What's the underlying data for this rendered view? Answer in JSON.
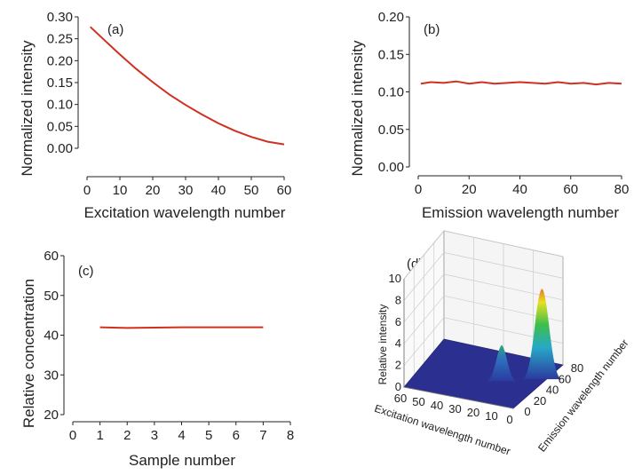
{
  "chart_data": [
    {
      "type": "line",
      "panel_label": "(a)",
      "xlabel": "Excitation wavelength number",
      "ylabel": "Normalized intensity",
      "xlim": [
        0,
        60
      ],
      "ylim": [
        0.0,
        0.3
      ],
      "x_ticks": [
        "0",
        "10",
        "20",
        "30",
        "40",
        "50",
        "60"
      ],
      "y_ticks": [
        "0.00",
        "0.05",
        "0.10",
        "0.15",
        "0.20",
        "0.25",
        "0.30"
      ],
      "grid": false,
      "color": "#d03020",
      "x": [
        1,
        5,
        10,
        15,
        20,
        25,
        30,
        35,
        40,
        45,
        50,
        55,
        60
      ],
      "y": [
        0.277,
        0.249,
        0.214,
        0.181,
        0.151,
        0.123,
        0.099,
        0.077,
        0.057,
        0.04,
        0.026,
        0.015,
        0.009
      ]
    },
    {
      "type": "line",
      "panel_label": "(b)",
      "xlabel": "Emission wavelength number",
      "ylabel": "Normalized intensity",
      "xlim": [
        0,
        80
      ],
      "ylim": [
        0.0,
        0.2
      ],
      "x_ticks": [
        "0",
        "20",
        "40",
        "60",
        "80"
      ],
      "y_ticks": [
        "0.00",
        "0.05",
        "0.10",
        "0.15",
        "0.20"
      ],
      "grid": false,
      "color": "#d03020",
      "x": [
        1,
        5,
        10,
        15,
        20,
        25,
        30,
        35,
        40,
        45,
        50,
        55,
        60,
        65,
        70,
        75,
        80
      ],
      "y": [
        0.111,
        0.113,
        0.112,
        0.114,
        0.111,
        0.113,
        0.111,
        0.112,
        0.113,
        0.112,
        0.111,
        0.113,
        0.111,
        0.112,
        0.11,
        0.112,
        0.111
      ]
    },
    {
      "type": "line",
      "panel_label": "(c)",
      "xlabel": "Sample number",
      "ylabel": "Relative concentration",
      "xlim": [
        0,
        8
      ],
      "ylim": [
        20,
        60
      ],
      "x_ticks": [
        "0",
        "1",
        "2",
        "3",
        "4",
        "5",
        "6",
        "7",
        "8"
      ],
      "y_ticks": [
        "20",
        "30",
        "40",
        "50",
        "60"
      ],
      "grid": false,
      "color": "#d03020",
      "x": [
        1,
        2,
        3,
        4,
        5,
        6,
        7
      ],
      "y": [
        42.0,
        41.8,
        41.9,
        42.0,
        42.0,
        42.0,
        42.0
      ]
    },
    {
      "type": "surface",
      "panel_label": "(d)",
      "xlabel": "Excitation wavelength number",
      "ylabel": "Emission wavelength number",
      "zlabel": "Relative intensity",
      "x_ticks": [
        "60",
        "50",
        "40",
        "30",
        "20",
        "10",
        "0"
      ],
      "y_ticks": [
        "0",
        "20",
        "40",
        "60",
        "80"
      ],
      "z_ticks": [
        "0",
        "2",
        "4",
        "6",
        "8",
        "10"
      ],
      "zlim": [
        0,
        10
      ],
      "peaks": [
        {
          "excitation": 3,
          "emission": 55,
          "height": 8.2
        },
        {
          "excitation": 20,
          "emission": 40,
          "height": 3.2
        }
      ]
    }
  ]
}
